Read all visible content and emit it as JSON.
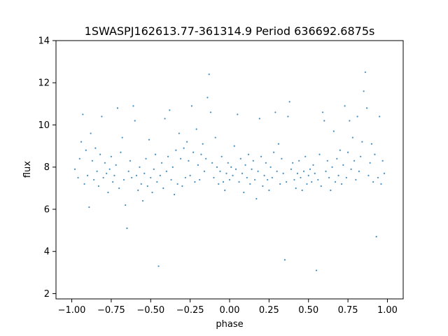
{
  "chart_data": {
    "type": "scatter",
    "title": "1SWASPJ162613.77-361314.9 Period 636692.6875s",
    "xlabel": "phase",
    "ylabel": "flux",
    "xlim": [
      -1.1,
      1.1
    ],
    "ylim": [
      1.75,
      14.0
    ],
    "xticks": [
      -1.0,
      -0.75,
      -0.5,
      -0.25,
      0.0,
      0.25,
      0.5,
      0.75,
      1.0
    ],
    "xtick_labels": [
      "−1.00",
      "−0.75",
      "−0.50",
      "−0.25",
      "0.00",
      "0.25",
      "0.50",
      "0.75",
      "1.00"
    ],
    "yticks": [
      2,
      4,
      6,
      8,
      10,
      12,
      14
    ],
    "ytick_labels": [
      "2",
      "4",
      "6",
      "8",
      "10",
      "12",
      "14"
    ],
    "grid": false,
    "marker_color": "#1f77b4",
    "series": [
      {
        "points": [
          [
            -0.98,
            7.9
          ],
          [
            -0.96,
            7.5
          ],
          [
            -0.95,
            8.4
          ],
          [
            -0.94,
            9.2
          ],
          [
            -0.93,
            10.5
          ],
          [
            -0.92,
            7.2
          ],
          [
            -0.91,
            8.8
          ],
          [
            -0.9,
            7.6
          ],
          [
            -0.89,
            6.1
          ],
          [
            -0.88,
            9.6
          ],
          [
            -0.87,
            8.3
          ],
          [
            -0.86,
            7.4
          ],
          [
            -0.85,
            8.9
          ],
          [
            -0.84,
            7.8
          ],
          [
            -0.83,
            7.1
          ],
          [
            -0.82,
            8.6
          ],
          [
            -0.81,
            10.4
          ],
          [
            -0.8,
            7.5
          ],
          [
            -0.79,
            8.2
          ],
          [
            -0.78,
            7.7
          ],
          [
            -0.77,
            6.8
          ],
          [
            -0.76,
            7.9
          ],
          [
            -0.75,
            8.5
          ],
          [
            -0.74,
            7.3
          ],
          [
            -0.73,
            7.6
          ],
          [
            -0.72,
            8.1
          ],
          [
            -0.71,
            10.8
          ],
          [
            -0.7,
            7.0
          ],
          [
            -0.69,
            8.7
          ],
          [
            -0.68,
            9.4
          ],
          [
            -0.67,
            7.4
          ],
          [
            -0.66,
            6.2
          ],
          [
            -0.65,
            5.1
          ],
          [
            -0.64,
            7.8
          ],
          [
            -0.63,
            8.3
          ],
          [
            -0.62,
            7.5
          ],
          [
            -0.61,
            10.9
          ],
          [
            -0.6,
            10.2
          ],
          [
            -0.59,
            7.6
          ],
          [
            -0.58,
            6.9
          ],
          [
            -0.57,
            8.0
          ],
          [
            -0.56,
            7.2
          ],
          [
            -0.55,
            6.4
          ],
          [
            -0.54,
            7.7
          ],
          [
            -0.53,
            8.4
          ],
          [
            -0.52,
            7.1
          ],
          [
            -0.51,
            9.3
          ],
          [
            -0.5,
            7.5
          ],
          [
            -0.49,
            6.8
          ],
          [
            -0.48,
            7.9
          ],
          [
            -0.47,
            8.6
          ],
          [
            -0.46,
            7.3
          ],
          [
            -0.45,
            3.3
          ],
          [
            -0.44,
            7.6
          ],
          [
            -0.43,
            8.2
          ],
          [
            -0.42,
            7.0
          ],
          [
            -0.41,
            10.3
          ],
          [
            -0.4,
            7.8
          ],
          [
            -0.39,
            8.5
          ],
          [
            -0.38,
            10.7
          ],
          [
            -0.37,
            7.4
          ],
          [
            -0.36,
            8.0
          ],
          [
            -0.35,
            6.7
          ],
          [
            -0.34,
            8.8
          ],
          [
            -0.33,
            7.2
          ],
          [
            -0.32,
            9.6
          ],
          [
            -0.31,
            8.4
          ],
          [
            -0.3,
            7.1
          ],
          [
            -0.29,
            8.9
          ],
          [
            -0.28,
            7.5
          ],
          [
            -0.27,
            9.2
          ],
          [
            -0.26,
            8.3
          ],
          [
            -0.25,
            7.6
          ],
          [
            -0.24,
            10.9
          ],
          [
            -0.23,
            8.7
          ],
          [
            -0.22,
            7.3
          ],
          [
            -0.21,
            9.8
          ],
          [
            -0.2,
            8.1
          ],
          [
            -0.19,
            7.4
          ],
          [
            -0.18,
            8.6
          ],
          [
            -0.17,
            9.1
          ],
          [
            -0.16,
            7.8
          ],
          [
            -0.15,
            8.4
          ],
          [
            -0.14,
            11.3
          ],
          [
            -0.13,
            12.4
          ],
          [
            -0.12,
            10.6
          ],
          [
            -0.11,
            8.2
          ],
          [
            -0.1,
            7.5
          ],
          [
            -0.09,
            9.4
          ],
          [
            -0.08,
            8.0
          ],
          [
            -0.07,
            7.2
          ],
          [
            -0.06,
            7.8
          ],
          [
            -0.05,
            8.5
          ],
          [
            -0.04,
            7.3
          ],
          [
            -0.03,
            6.9
          ],
          [
            -0.02,
            7.7
          ],
          [
            -0.01,
            8.2
          ],
          [
            0.0,
            7.4
          ],
          [
            0.01,
            8.0
          ],
          [
            0.02,
            7.6
          ],
          [
            0.03,
            9.0
          ],
          [
            0.04,
            7.9
          ],
          [
            0.05,
            10.5
          ],
          [
            0.06,
            7.3
          ],
          [
            0.07,
            8.4
          ],
          [
            0.08,
            7.7
          ],
          [
            0.09,
            6.8
          ],
          [
            0.1,
            8.1
          ],
          [
            0.11,
            7.5
          ],
          [
            0.12,
            8.6
          ],
          [
            0.13,
            7.2
          ],
          [
            0.14,
            7.9
          ],
          [
            0.15,
            8.3
          ],
          [
            0.16,
            7.4
          ],
          [
            0.17,
            6.5
          ],
          [
            0.18,
            7.8
          ],
          [
            0.19,
            10.3
          ],
          [
            0.2,
            8.5
          ],
          [
            0.21,
            7.1
          ],
          [
            0.22,
            7.6
          ],
          [
            0.23,
            8.2
          ],
          [
            0.24,
            7.4
          ],
          [
            0.25,
            6.9
          ],
          [
            0.26,
            8.0
          ],
          [
            0.27,
            7.5
          ],
          [
            0.28,
            8.7
          ],
          [
            0.29,
            10.6
          ],
          [
            0.3,
            7.8
          ],
          [
            0.31,
            9.1
          ],
          [
            0.32,
            7.2
          ],
          [
            0.33,
            8.4
          ],
          [
            0.34,
            7.7
          ],
          [
            0.35,
            3.6
          ],
          [
            0.36,
            7.3
          ],
          [
            0.37,
            10.4
          ],
          [
            0.38,
            11.1
          ],
          [
            0.39,
            7.9
          ],
          [
            0.4,
            8.2
          ],
          [
            0.41,
            7.4
          ],
          [
            0.42,
            7.0
          ],
          [
            0.43,
            7.7
          ],
          [
            0.44,
            8.3
          ],
          [
            0.45,
            7.5
          ],
          [
            0.46,
            6.9
          ],
          [
            0.47,
            7.8
          ],
          [
            0.48,
            8.5
          ],
          [
            0.49,
            7.2
          ],
          [
            0.5,
            7.6
          ],
          [
            0.51,
            7.9
          ],
          [
            0.52,
            7.3
          ],
          [
            0.53,
            8.1
          ],
          [
            0.54,
            7.7
          ],
          [
            0.55,
            3.1
          ],
          [
            0.56,
            7.4
          ],
          [
            0.57,
            8.6
          ],
          [
            0.58,
            7.1
          ],
          [
            0.59,
            10.6
          ],
          [
            0.6,
            10.2
          ],
          [
            0.61,
            7.8
          ],
          [
            0.62,
            8.3
          ],
          [
            0.63,
            7.5
          ],
          [
            0.64,
            6.9
          ],
          [
            0.65,
            8.0
          ],
          [
            0.66,
            9.7
          ],
          [
            0.67,
            7.3
          ],
          [
            0.68,
            8.4
          ],
          [
            0.69,
            7.6
          ],
          [
            0.7,
            8.8
          ],
          [
            0.71,
            7.2
          ],
          [
            0.72,
            8.1
          ],
          [
            0.73,
            10.9
          ],
          [
            0.74,
            7.5
          ],
          [
            0.75,
            8.7
          ],
          [
            0.76,
            10.2
          ],
          [
            0.77,
            7.9
          ],
          [
            0.78,
            9.4
          ],
          [
            0.79,
            8.3
          ],
          [
            0.8,
            7.4
          ],
          [
            0.81,
            10.4
          ],
          [
            0.82,
            7.8
          ],
          [
            0.83,
            8.5
          ],
          [
            0.84,
            9.2
          ],
          [
            0.85,
            11.6
          ],
          [
            0.86,
            12.5
          ],
          [
            0.87,
            10.8
          ],
          [
            0.88,
            7.6
          ],
          [
            0.89,
            8.2
          ],
          [
            0.9,
            9.1
          ],
          [
            0.91,
            7.3
          ],
          [
            0.92,
            8.6
          ],
          [
            0.93,
            4.7
          ],
          [
            0.94,
            7.5
          ],
          [
            0.95,
            10.4
          ],
          [
            0.96,
            7.2
          ],
          [
            0.97,
            8.3
          ],
          [
            0.98,
            7.7
          ]
        ]
      }
    ]
  }
}
